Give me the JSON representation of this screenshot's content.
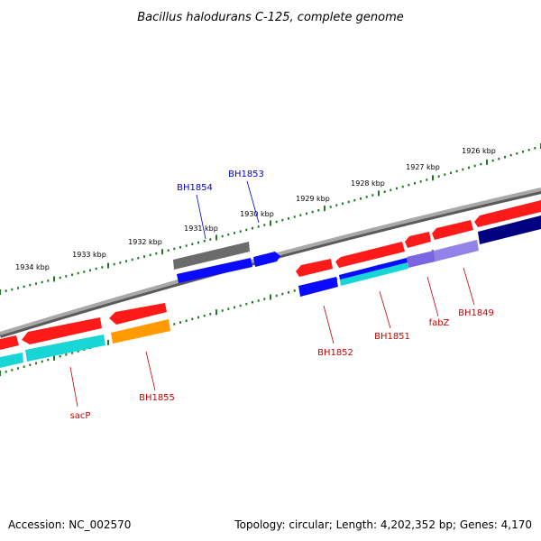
{
  "title": "Bacillus halodurans C-125, complete genome",
  "footer": {
    "accession": "Accession: NC_002570",
    "topology": "Topology: circular; Length: 4,202,352 bp; Genes: 4,170"
  },
  "colors": {
    "backbone": "#7f7f7f",
    "ticks": "#1f7a1f",
    "red": "#ff1a1a",
    "blue": "#0a0aff",
    "cyan": "#19d6d6",
    "orange": "#ff9a00",
    "gray": "#6b6b6b",
    "navy": "#000080",
    "lavender": "#7a66e0",
    "label_red": "#cc0000",
    "label_blue": "#0000cc"
  },
  "kbp_labels": [
    "1934 kbp",
    "1933 kbp",
    "1932 kbp",
    "1931 kbp",
    "1930 kbp",
    "1929 kbp",
    "1928 kbp",
    "1927 kbp",
    "1926 kbp"
  ],
  "gene_labels": [
    {
      "name": "BH1854",
      "color": "blue"
    },
    {
      "name": "BH1853",
      "color": "blue"
    },
    {
      "name": "sacP",
      "color": "red"
    },
    {
      "name": "BH1855",
      "color": "red"
    },
    {
      "name": "BH1852",
      "color": "red"
    },
    {
      "name": "BH1851",
      "color": "red"
    },
    {
      "name": "fabZ",
      "color": "red"
    },
    {
      "name": "BH1849",
      "color": "red"
    }
  ]
}
